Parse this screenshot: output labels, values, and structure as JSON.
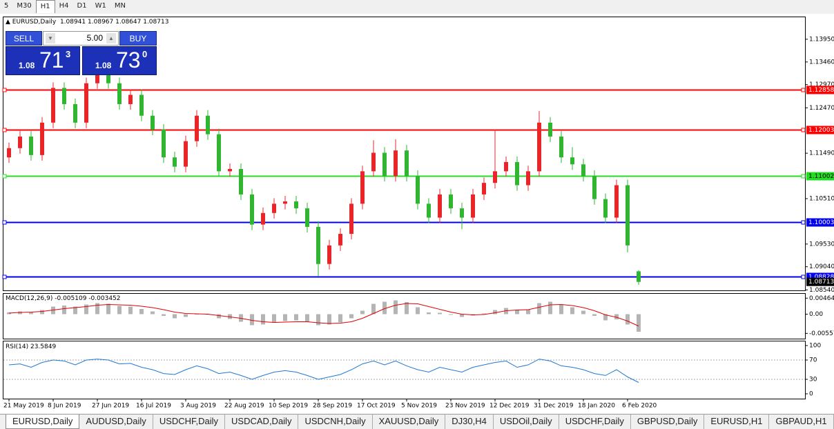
{
  "toolbar": {
    "timeframes": [
      "5",
      "M30",
      "H1",
      "H4",
      "D1",
      "W1",
      "MN"
    ],
    "active": 2
  },
  "trade_panel": {
    "sell": "SELL",
    "buy": "BUY",
    "lot": "5.00",
    "bid": {
      "prefix": "1.08",
      "big": "71",
      "tail": "3"
    },
    "ask": {
      "prefix": "1.08",
      "big": "73",
      "tail": "0"
    }
  },
  "chart_data": [
    {
      "type": "candlestick",
      "title": "EURUSD,Daily",
      "categories": [
        "21 May 2019",
        null,
        null,
        null,
        "8 Jun 2019",
        null,
        null,
        null,
        "27 Jun 2019",
        null,
        null,
        null,
        "16 Jul 2019",
        null,
        null,
        null,
        "3 Aug 2019",
        null,
        null,
        null,
        "22 Aug 2019",
        null,
        null,
        null,
        "10 Sep 2019",
        null,
        null,
        null,
        "28 Sep 2019",
        null,
        null,
        null,
        "17 Oct 2019",
        null,
        null,
        null,
        "5 Nov 2019",
        null,
        null,
        null,
        "23 Nov 2019",
        null,
        null,
        null,
        "12 Dec 2019",
        null,
        null,
        null,
        "31 Dec 2019",
        null,
        null,
        null,
        "18 Jan 2020",
        null,
        null,
        null,
        "6 Feb 2020",
        null
      ],
      "candles": [
        [
          1.114,
          1.1172,
          1.1128,
          1.116
        ],
        [
          1.116,
          1.1197,
          1.1148,
          1.1185
        ],
        [
          1.1185,
          1.1197,
          1.1133,
          1.1145
        ],
        [
          1.1145,
          1.1227,
          1.1133,
          1.1215
        ],
        [
          1.1215,
          1.1302,
          1.1203,
          1.129
        ],
        [
          1.129,
          1.1302,
          1.1243,
          1.1255
        ],
        [
          1.1255,
          1.1267,
          1.1203,
          1.1215
        ],
        [
          1.1215,
          1.1312,
          1.1203,
          1.13
        ],
        [
          1.13,
          1.1337,
          1.1288,
          1.1325
        ],
        [
          1.1325,
          1.1337,
          1.1288,
          1.13
        ],
        [
          1.13,
          1.1312,
          1.1243,
          1.1255
        ],
        [
          1.1255,
          1.1287,
          1.1243,
          1.1275
        ],
        [
          1.1275,
          1.1287,
          1.1218,
          1.123
        ],
        [
          1.123,
          1.1242,
          1.1188,
          1.12
        ],
        [
          1.12,
          1.1212,
          1.1128,
          1.114
        ],
        [
          1.114,
          1.1152,
          1.1108,
          1.112
        ],
        [
          1.112,
          1.1187,
          1.1108,
          1.1175
        ],
        [
          1.1175,
          1.1242,
          1.1163,
          1.123
        ],
        [
          1.123,
          1.1242,
          1.1178,
          1.119
        ],
        [
          1.119,
          1.1202,
          1.1098,
          1.111
        ],
        [
          1.111,
          1.1127,
          1.1098,
          1.1115
        ],
        [
          1.1115,
          1.1127,
          1.1048,
          1.106
        ],
        [
          1.106,
          1.1072,
          1.0983,
          1.0995
        ],
        [
          1.0995,
          1.1032,
          1.0983,
          1.102
        ],
        [
          1.102,
          1.1052,
          1.1008,
          1.104
        ],
        [
          1.104,
          1.1057,
          1.1028,
          1.1045
        ],
        [
          1.1045,
          1.1057,
          1.1018,
          1.103
        ],
        [
          1.103,
          1.1042,
          1.0978,
          1.099
        ],
        [
          1.099,
          1.1002,
          1.0883,
          1.091
        ],
        [
          1.091,
          1.0962,
          1.0898,
          1.095
        ],
        [
          1.095,
          1.0987,
          1.0938,
          1.0975
        ],
        [
          1.0975,
          1.1052,
          1.0963,
          1.104
        ],
        [
          1.104,
          1.1122,
          1.1028,
          1.111
        ],
        [
          1.111,
          1.1177,
          1.1098,
          1.115
        ],
        [
          1.115,
          1.1162,
          1.1088,
          1.11
        ],
        [
          1.11,
          1.1179,
          1.1088,
          1.1155
        ],
        [
          1.1155,
          1.1167,
          1.1088,
          1.11
        ],
        [
          1.11,
          1.1112,
          1.1028,
          1.104
        ],
        [
          1.104,
          1.1052,
          1.0998,
          1.101
        ],
        [
          1.101,
          1.1072,
          1.0998,
          1.106
        ],
        [
          1.106,
          1.1072,
          1.1018,
          1.103
        ],
        [
          1.103,
          1.1042,
          1.0985,
          1.101
        ],
        [
          1.101,
          1.1072,
          1.0998,
          1.106
        ],
        [
          1.106,
          1.1097,
          1.1048,
          1.1085
        ],
        [
          1.1085,
          1.12,
          1.1073,
          1.111
        ],
        [
          1.111,
          1.1142,
          1.1098,
          1.113
        ],
        [
          1.113,
          1.1142,
          1.1068,
          1.108
        ],
        [
          1.108,
          1.1122,
          1.1068,
          1.111
        ],
        [
          1.111,
          1.124,
          1.1098,
          1.1215
        ],
        [
          1.1215,
          1.1227,
          1.1173,
          1.1185
        ],
        [
          1.1185,
          1.1197,
          1.1128,
          1.114
        ],
        [
          1.114,
          1.1162,
          1.1113,
          1.1125
        ],
        [
          1.1125,
          1.1137,
          1.1088,
          1.11
        ],
        [
          1.11,
          1.1112,
          1.1038,
          1.105
        ],
        [
          1.105,
          1.1062,
          1.0998,
          1.101
        ],
        [
          1.101,
          1.1092,
          1.0998,
          1.108
        ],
        [
          1.108,
          1.1092,
          1.0935,
          1.095
        ],
        [
          1.08941,
          1.08967,
          1.08647,
          1.08713
        ]
      ],
      "up_color": "#e8262a",
      "down_color": "#2fb52f",
      "ylim": [
        1.0853,
        1.14425
      ],
      "yticks": [
        {
          "value": 1.1395,
          "label": "1.13950"
        },
        {
          "value": 1.1346,
          "label": "1.13460"
        },
        {
          "value": 1.1297,
          "label": "1.12970"
        },
        {
          "value": 1.1247,
          "label": "1.12470"
        },
        {
          "value": 1.1149,
          "label": "1.11490"
        },
        {
          "value": 1.1051,
          "label": "1.10510"
        },
        {
          "value": 1.0953,
          "label": "1.09530"
        },
        {
          "value": 1.0904,
          "label": "1.09040"
        },
        {
          "value": 1.0854,
          "label": "1.08540"
        }
      ],
      "levels": [
        {
          "value": 1.12858,
          "color": "#ff0000",
          "text_color": "#ffffff"
        },
        {
          "value": 1.12003,
          "color": "#ff0000",
          "text_color": "#ffffff"
        },
        {
          "value": 1.11002,
          "color": "#22dd22",
          "text_color": "#000000"
        },
        {
          "value": 1.10003,
          "color": "#0000ee",
          "text_color": "#ffffff"
        },
        {
          "value": 1.08828,
          "color": "#0000ee",
          "text_color": "#ffffff"
        }
      ]
    },
    {
      "type": "macd",
      "title": "MACD(12,26,9)",
      "histogram": {
        "color": "#b4b4b4",
        "values": [
          0.0005,
          0.0008,
          0.0006,
          0.0012,
          0.0022,
          0.0025,
          0.0022,
          0.0028,
          0.0032,
          0.003,
          0.0024,
          0.0022,
          0.0015,
          0.0008,
          -0.0005,
          -0.0012,
          -0.0008,
          0.0,
          -0.0002,
          -0.0012,
          -0.0014,
          -0.0022,
          -0.0032,
          -0.003,
          -0.0025,
          -0.002,
          -0.0018,
          -0.0022,
          -0.0032,
          -0.003,
          -0.0024,
          -0.0012,
          0.001,
          0.003,
          0.0036,
          0.004,
          0.0035,
          0.002,
          0.0005,
          0.0004,
          -0.0002,
          -0.0008,
          -0.0004,
          0.0002,
          0.0012,
          0.0018,
          0.0012,
          0.0014,
          0.0032,
          0.0036,
          0.0028,
          0.002,
          0.001,
          -0.0005,
          -0.0018,
          -0.0015,
          -0.003,
          -0.005109
        ]
      },
      "signal": {
        "color": "#e00000",
        "values": [
          0.0003,
          0.0005,
          0.0006,
          0.0008,
          0.0012,
          0.0016,
          0.0019,
          0.0022,
          0.0026,
          0.0028,
          0.0027,
          0.0026,
          0.0023,
          0.0019,
          0.0013,
          0.0006,
          0.0002,
          0.0001,
          0.0,
          -0.0004,
          -0.0008,
          -0.0012,
          -0.0018,
          -0.0022,
          -0.0024,
          -0.0023,
          -0.0022,
          -0.0022,
          -0.0025,
          -0.0027,
          -0.0026,
          -0.0022,
          -0.0012,
          0.0002,
          0.0016,
          0.0026,
          0.0031,
          0.003,
          0.0022,
          0.0014,
          0.0006,
          0.0,
          -0.0002,
          -0.0001,
          0.0004,
          0.001,
          0.0012,
          0.0013,
          0.002,
          0.0027,
          0.0028,
          0.0025,
          0.0019,
          0.001,
          -0.0002,
          -0.0009,
          -0.002,
          -0.003452
        ]
      },
      "ylim": [
        -0.0071,
        0.0059
      ],
      "yticks": [
        0.004643,
        {
          "value": 0,
          "label": "0.00"
        },
        -0.005574
      ]
    },
    {
      "type": "line",
      "title": "RSI(14)",
      "color": "#1e78d2",
      "values": [
        60,
        62,
        55,
        65,
        70,
        68,
        60,
        70,
        72,
        70,
        62,
        63,
        55,
        50,
        42,
        40,
        50,
        58,
        52,
        42,
        45,
        38,
        30,
        38,
        45,
        48,
        45,
        38,
        30,
        35,
        40,
        50,
        62,
        68,
        60,
        68,
        58,
        50,
        45,
        55,
        50,
        45,
        55,
        60,
        65,
        68,
        55,
        60,
        72,
        68,
        58,
        55,
        50,
        42,
        38,
        50,
        35,
        23.5849
      ],
      "ylim": [
        -10,
        108.6
      ],
      "yticks": [
        100,
        70,
        30,
        0
      ],
      "levels": [
        70,
        30
      ]
    }
  ],
  "tabs": [
    "EURUSD,Daily",
    "AUDUSD,Daily",
    "USDCHF,Daily",
    "USDCAD,Daily",
    "USDCNH,Daily",
    "XAUUSD,Daily",
    "DJ30,H4",
    "USDOil,Daily",
    "USDCHF,Daily",
    "GBPUSD,Daily",
    "EURUSD,H1",
    "GBPAUD,H1"
  ],
  "active_tab": 0
}
